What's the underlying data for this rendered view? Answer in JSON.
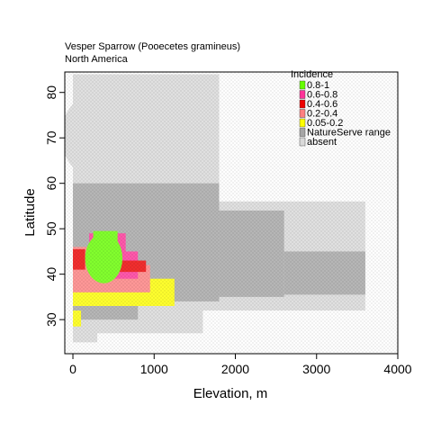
{
  "chart_data": {
    "type": "heatmap",
    "title": "Vesper Sparrow  (Pooecetes gramineus)",
    "subtitle": "North America",
    "xlabel": "Elevation, m",
    "ylabel": "Latitude",
    "xlim": [
      -100,
      4000
    ],
    "ylim": [
      22.5,
      84.5
    ],
    "x_ticks": [
      0,
      1000,
      2000,
      3000,
      4000
    ],
    "y_ticks": [
      30,
      40,
      50,
      60,
      70,
      80
    ],
    "x_tick_labels": [
      "0",
      "1000",
      "2000",
      "3000",
      "4000"
    ],
    "y_tick_labels": [
      "30",
      "40",
      "50",
      "60",
      "70",
      "80"
    ],
    "grid": false,
    "legend_placement": "top-right",
    "legend": {
      "title": "Incidence",
      "entries": [
        {
          "label": "0.8-1",
          "color": "#66ff00"
        },
        {
          "label": "0.6-0.8",
          "color": "#ff3399"
        },
        {
          "label": "0.4-0.6",
          "color": "#ee0000"
        },
        {
          "label": "0.2-0.4",
          "color": "#ff8080"
        },
        {
          "label": "0.05-0.2",
          "color": "#ffff00"
        },
        {
          "label": "NatureServe range",
          "color": "#a6a6a6"
        },
        {
          "label": "absent",
          "color": "#d9d9d9"
        }
      ]
    },
    "regions": [
      {
        "category": "absent",
        "shape": "ellipse",
        "cx": 800,
        "cy": 70.5,
        "rx": 950,
        "ry": 13
      },
      {
        "category": "absent",
        "shape": "rect",
        "x": [
          0,
          1800
        ],
        "y": [
          55,
          84
        ]
      },
      {
        "category": "absent",
        "shape": "rect",
        "x": [
          0,
          3600
        ],
        "y": [
          32,
          56
        ]
      },
      {
        "category": "absent",
        "shape": "rect",
        "x": [
          0,
          1600
        ],
        "y": [
          27,
          33
        ]
      },
      {
        "category": "absent",
        "shape": "rect",
        "x": [
          0,
          300
        ],
        "y": [
          25,
          28
        ]
      },
      {
        "category": "NatureServe range",
        "shape": "rect",
        "x": [
          0,
          1800
        ],
        "y": [
          34,
          60
        ]
      },
      {
        "category": "NatureServe range",
        "shape": "rect",
        "x": [
          1800,
          2600
        ],
        "y": [
          35,
          54
        ]
      },
      {
        "category": "NatureServe range",
        "shape": "rect",
        "x": [
          2600,
          3600
        ],
        "y": [
          35.5,
          45
        ]
      },
      {
        "category": "NatureServe range",
        "shape": "rect",
        "x": [
          0,
          800
        ],
        "y": [
          30,
          35
        ]
      },
      {
        "category": "0.05-0.2",
        "shape": "rect",
        "x": [
          0,
          1250
        ],
        "y": [
          33,
          39
        ]
      },
      {
        "category": "0.05-0.2",
        "shape": "rect",
        "x": [
          0,
          100
        ],
        "y": [
          28.5,
          32
        ]
      },
      {
        "category": "0.2-0.4",
        "shape": "rect",
        "x": [
          0,
          950
        ],
        "y": [
          36,
          42
        ]
      },
      {
        "category": "0.2-0.4",
        "shape": "rect",
        "x": [
          0,
          250
        ],
        "y": [
          40,
          46
        ]
      },
      {
        "category": "0.6-0.8",
        "shape": "rect",
        "x": [
          200,
          650
        ],
        "y": [
          44,
          49
        ]
      },
      {
        "category": "0.6-0.8",
        "shape": "rect",
        "x": [
          500,
          800
        ],
        "y": [
          39,
          45
        ]
      },
      {
        "category": "0.4-0.6",
        "shape": "rect",
        "x": [
          450,
          900
        ],
        "y": [
          40.5,
          43
        ]
      },
      {
        "category": "0.4-0.6",
        "shape": "rect",
        "x": [
          0,
          150
        ],
        "y": [
          41,
          45.5
        ]
      },
      {
        "category": "0.8-1",
        "shape": "ellipse",
        "cx": 380,
        "cy": 43.5,
        "rx": 230,
        "ry": 5.5
      },
      {
        "category": "0.8-1",
        "shape": "rect",
        "x": [
          250,
          550
        ],
        "y": [
          45,
          49.5
        ]
      }
    ]
  }
}
